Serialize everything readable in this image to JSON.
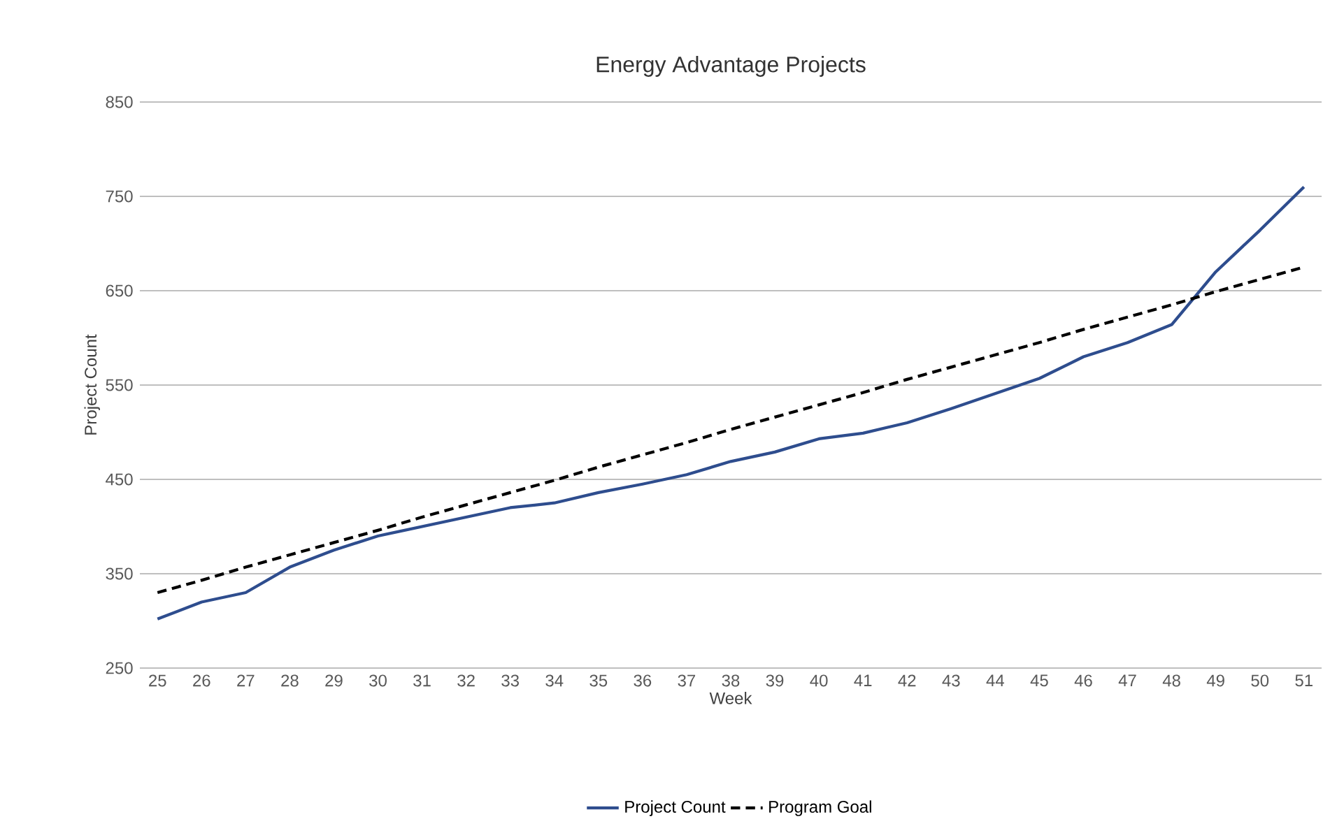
{
  "chart_data": {
    "type": "line",
    "title": "Energy Advantage Projects",
    "xlabel": "Week",
    "ylabel": "Project Count",
    "categories": [
      "25",
      "26",
      "27",
      "28",
      "29",
      "30",
      "31",
      "32",
      "33",
      "34",
      "35",
      "36",
      "37",
      "38",
      "39",
      "40",
      "41",
      "42",
      "43",
      "44",
      "45",
      "46",
      "47",
      "48",
      "49",
      "50",
      "51"
    ],
    "series": [
      {
        "name": "Project Count",
        "color": "#2e4d8e",
        "line_style": "solid",
        "values": [
          302,
          320,
          330,
          357,
          375,
          390,
          400,
          410,
          420,
          425,
          436,
          445,
          455,
          469,
          479,
          493,
          499,
          510,
          525,
          541,
          557,
          580,
          595,
          614,
          670,
          714,
          760
        ]
      },
      {
        "name": "Program Goal",
        "color": "#000000",
        "line_style": "dashed",
        "values": [
          330,
          343,
          357,
          370,
          383,
          396,
          410,
          423,
          436,
          449,
          463,
          476,
          489,
          503,
          516,
          529,
          542,
          556,
          569,
          582,
          595,
          609,
          622,
          635,
          649,
          662,
          675
        ]
      }
    ],
    "ylim": [
      250,
      850
    ],
    "yticks": [
      250,
      350,
      450,
      550,
      650,
      750,
      850
    ],
    "grid": "y",
    "legend": "bottom"
  }
}
